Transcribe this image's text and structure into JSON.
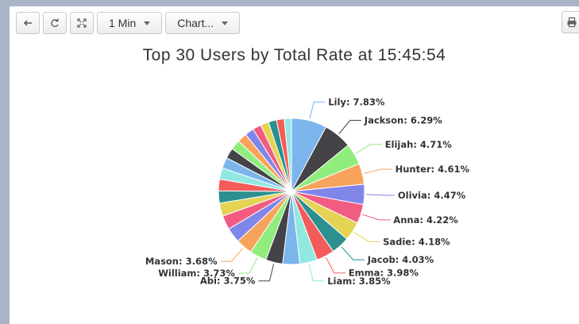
{
  "toolbar": {
    "back_icon": "back-arrow-icon",
    "refresh_icon": "refresh-icon",
    "fullscreen_icon": "fullscreen-icon",
    "interval_label": "1 Min",
    "chart_menu_label": "Chart...",
    "print_icon": "print-icon"
  },
  "chart_data": {
    "type": "pie",
    "title": "Top 30 Users by Total Rate at 15:45:54",
    "slices": [
      {
        "name": "Lily",
        "value": 7.83,
        "color": "#7cb5ec",
        "label": "Lily: 7.83%"
      },
      {
        "name": "Jackson",
        "value": 6.29,
        "color": "#434348",
        "label": "Jackson: 6.29%"
      },
      {
        "name": "Elijah",
        "value": 4.71,
        "color": "#90ed7d",
        "label": "Elijah: 4.71%"
      },
      {
        "name": "Hunter",
        "value": 4.61,
        "color": "#f7a35c",
        "label": "Hunter: 4.61%"
      },
      {
        "name": "Olivia",
        "value": 4.47,
        "color": "#8085e9",
        "label": "Olivia: 4.47%"
      },
      {
        "name": "Anna",
        "value": 4.22,
        "color": "#f15c80",
        "label": "Anna: 4.22%"
      },
      {
        "name": "Sadie",
        "value": 4.18,
        "color": "#e4d354",
        "label": "Sadie: 4.18%"
      },
      {
        "name": "Jacob",
        "value": 4.03,
        "color": "#2b908f",
        "label": "Jacob: 4.03%"
      },
      {
        "name": "Emma",
        "value": 3.98,
        "color": "#f45b5b",
        "label": "Emma: 3.98%"
      },
      {
        "name": "Liam",
        "value": 3.85,
        "color": "#91e8e1",
        "label": "Liam: 3.85%"
      },
      {
        "name": "",
        "value": 3.8,
        "color": "#7cb5ec",
        "label": ""
      },
      {
        "name": "Abi",
        "value": 3.75,
        "color": "#434348",
        "label": "Abi: 3.75%"
      },
      {
        "name": "William",
        "value": 3.73,
        "color": "#90ed7d",
        "label": "William: 3.73%"
      },
      {
        "name": "Mason",
        "value": 3.68,
        "color": "#f7a35c",
        "label": "Mason: 3.68%"
      },
      {
        "name": "",
        "value": 3.3,
        "color": "#8085e9",
        "label": ""
      },
      {
        "name": "",
        "value": 3.1,
        "color": "#f15c80",
        "label": ""
      },
      {
        "name": "",
        "value": 2.9,
        "color": "#e4d354",
        "label": ""
      },
      {
        "name": "",
        "value": 2.7,
        "color": "#2b908f",
        "label": ""
      },
      {
        "name": "",
        "value": 2.6,
        "color": "#f45b5b",
        "label": ""
      },
      {
        "name": "",
        "value": 2.5,
        "color": "#91e8e1",
        "label": ""
      },
      {
        "name": "",
        "value": 2.4,
        "color": "#7cb5ec",
        "label": ""
      },
      {
        "name": "",
        "value": 2.3,
        "color": "#434348",
        "label": ""
      },
      {
        "name": "",
        "value": 2.2,
        "color": "#90ed7d",
        "label": ""
      },
      {
        "name": "",
        "value": 2.1,
        "color": "#f7a35c",
        "label": ""
      },
      {
        "name": "",
        "value": 2.0,
        "color": "#8085e9",
        "label": ""
      },
      {
        "name": "",
        "value": 1.9,
        "color": "#f15c80",
        "label": ""
      },
      {
        "name": "",
        "value": 1.8,
        "color": "#e4d354",
        "label": ""
      },
      {
        "name": "",
        "value": 1.8,
        "color": "#2b908f",
        "label": ""
      },
      {
        "name": "",
        "value": 1.7,
        "color": "#f45b5b",
        "label": ""
      },
      {
        "name": "",
        "value": 1.6,
        "color": "#91e8e1",
        "label": ""
      }
    ]
  }
}
